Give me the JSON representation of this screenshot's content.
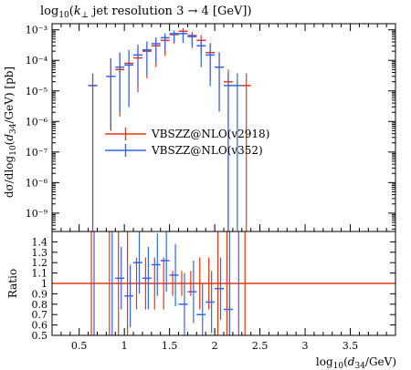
{
  "chart_data": [
    {
      "type": "histogram",
      "title": "log10(k⊥ jet resolution 3 → 4 [GeV])",
      "ylabel": "dσ/dlog10(d34/GeV) [pb]",
      "xlim": [
        0.2,
        4.0
      ],
      "ylim_log10": [
        -9.6,
        -2.8
      ],
      "yscale": "log",
      "y_tick_labels": [
        "10⁻⁹",
        "10⁻⁸",
        "10⁻⁷",
        "10⁻⁶",
        "10⁻⁵",
        "10⁻⁴",
        "10⁻³"
      ],
      "legend_position": "center-left",
      "series": [
        {
          "name": "VBSZZ@NLO(v2918)",
          "color": "#ee3311",
          "bins": [
            {
              "x0": 0.6,
              "x1": 0.7,
              "y": 1.5e-05
            },
            {
              "x0": 0.8,
              "x1": 0.9,
              "y": 3e-05
            },
            {
              "x0": 0.9,
              "x1": 1.0,
              "y": 5e-05
            },
            {
              "x0": 1.0,
              "x1": 1.1,
              "y": 8e-05
            },
            {
              "x0": 1.1,
              "x1": 1.2,
              "y": 0.00012
            },
            {
              "x0": 1.2,
              "x1": 1.3,
              "y": 0.0002
            },
            {
              "x0": 1.3,
              "x1": 1.4,
              "y": 0.0003
            },
            {
              "x0": 1.4,
              "x1": 1.5,
              "y": 0.00045
            },
            {
              "x0": 1.5,
              "x1": 1.6,
              "y": 0.0007
            },
            {
              "x0": 1.6,
              "x1": 1.7,
              "y": 0.0009
            },
            {
              "x0": 1.7,
              "x1": 1.8,
              "y": 0.00065
            },
            {
              "x0": 1.8,
              "x1": 1.9,
              "y": 0.00045
            },
            {
              "x0": 1.9,
              "x1": 2.0,
              "y": 0.00018
            },
            {
              "x0": 2.0,
              "x1": 2.1,
              "y": 6e-05
            },
            {
              "x0": 2.1,
              "x1": 2.2,
              "y": 2e-05
            },
            {
              "x0": 2.3,
              "x1": 2.4,
              "y": 1.5e-05
            }
          ]
        },
        {
          "name": "VBSZZ@NLO(v352)",
          "color": "#3366ee",
          "bins": [
            {
              "x0": 0.6,
              "x1": 0.7,
              "y": 1.5e-05
            },
            {
              "x0": 0.8,
              "x1": 0.9,
              "y": 3e-05
            },
            {
              "x0": 0.9,
              "x1": 1.0,
              "y": 6e-05
            },
            {
              "x0": 1.0,
              "x1": 1.1,
              "y": 7e-05
            },
            {
              "x0": 1.1,
              "x1": 1.2,
              "y": 0.00015
            },
            {
              "x0": 1.2,
              "x1": 1.3,
              "y": 0.00022
            },
            {
              "x0": 1.3,
              "x1": 1.4,
              "y": 0.00035
            },
            {
              "x0": 1.4,
              "x1": 1.5,
              "y": 0.00055
            },
            {
              "x0": 1.5,
              "x1": 1.6,
              "y": 0.00075
            },
            {
              "x0": 1.6,
              "x1": 1.7,
              "y": 0.00075
            },
            {
              "x0": 1.7,
              "x1": 1.8,
              "y": 0.0006
            },
            {
              "x0": 1.8,
              "x1": 1.9,
              "y": 0.0003
            },
            {
              "x0": 1.9,
              "x1": 2.0,
              "y": 0.00015
            },
            {
              "x0": 2.0,
              "x1": 2.1,
              "y": 6e-05
            },
            {
              "x0": 2.1,
              "x1": 2.2,
              "y": 1.5e-05
            },
            {
              "x0": 2.2,
              "x1": 2.3,
              "y": 1.5e-05
            }
          ]
        }
      ]
    },
    {
      "type": "ratio",
      "ylabel": "Ratio",
      "xlabel": "log10(d34/GeV)",
      "xlim": [
        0.2,
        4.0
      ],
      "ylim": [
        0.5,
        1.5
      ],
      "x_tick_labels": [
        "0.5",
        "1",
        "1.5",
        "2",
        "2.5",
        "3",
        "3.5"
      ],
      "y_tick_labels": [
        "0.5",
        "0.6",
        "0.7",
        "0.8",
        "0.9",
        "1",
        "1.1",
        "1.2",
        "1.3",
        "1.4"
      ],
      "reference": {
        "color": "#ee3311",
        "value": 1.0
      },
      "series": [
        {
          "color": "#3366ee",
          "bins": [
            {
              "x0": 0.9,
              "x1": 1.0,
              "y": 1.05
            },
            {
              "x0": 1.0,
              "x1": 1.1,
              "y": 0.88
            },
            {
              "x0": 1.1,
              "x1": 1.2,
              "y": 1.2
            },
            {
              "x0": 1.2,
              "x1": 1.3,
              "y": 1.05
            },
            {
              "x0": 1.3,
              "x1": 1.4,
              "y": 1.18
            },
            {
              "x0": 1.4,
              "x1": 1.5,
              "y": 1.22
            },
            {
              "x0": 1.5,
              "x1": 1.6,
              "y": 1.08
            },
            {
              "x0": 1.6,
              "x1": 1.7,
              "y": 0.8
            },
            {
              "x0": 1.7,
              "x1": 1.8,
              "y": 0.92
            },
            {
              "x0": 1.8,
              "x1": 1.9,
              "y": 0.7
            },
            {
              "x0": 1.9,
              "x1": 2.0,
              "y": 0.82
            },
            {
              "x0": 2.0,
              "x1": 2.1,
              "y": 0.95
            },
            {
              "x0": 2.1,
              "x1": 2.2,
              "y": 0.75
            }
          ]
        }
      ]
    }
  ],
  "legend": {
    "items": [
      {
        "label": "VBSZZ@NLO(v2918)",
        "color": "#ee3311"
      },
      {
        "label": "VBSZZ@NLO(v352)",
        "color": "#3366ee"
      }
    ]
  }
}
